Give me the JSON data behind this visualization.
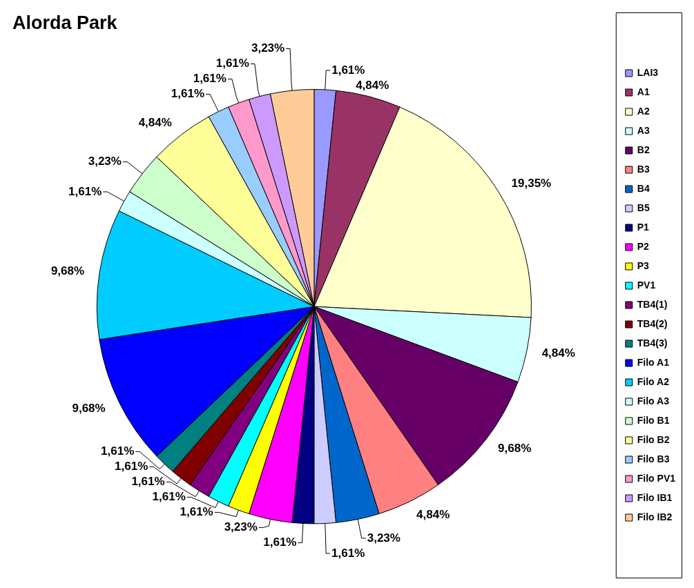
{
  "chart_data": {
    "type": "pie",
    "title": "Alorda Park",
    "categories": [
      "LAI3",
      "A1",
      "A2",
      "A3",
      "B2",
      "B3",
      "B4",
      "B5",
      "P1",
      "P2",
      "P3",
      "PV1",
      "TB4(1)",
      "TB4(2)",
      "TB4(3)",
      "Filo A1",
      "Filo A2",
      "Filo A3",
      "Filo B1",
      "Filo B2",
      "Filo B3",
      "Filo PV1",
      "Filo IB1",
      "Filo IB2"
    ],
    "values": [
      1.61,
      4.84,
      19.35,
      4.84,
      9.68,
      4.84,
      3.23,
      1.61,
      1.61,
      3.23,
      1.61,
      1.61,
      1.61,
      1.61,
      1.61,
      9.68,
      9.68,
      1.61,
      3.23,
      4.84,
      1.61,
      1.61,
      1.61,
      3.23
    ],
    "value_labels": [
      "1,61%",
      "4,84%",
      "19,35%",
      "4,84%",
      "9,68%",
      "4,84%",
      "3,23%",
      "1,61%",
      "1,61%",
      "3,23%",
      "1,61%",
      "1,61%",
      "1,61%",
      "1,61%",
      "1,61%",
      "9,68%",
      "9,68%",
      "1,61%",
      "3,23%",
      "4,84%",
      "1,61%",
      "1,61%",
      "1,61%",
      "3,23%"
    ],
    "colors": [
      "#9999ff",
      "#993366",
      "#ffffcc",
      "#ccffff",
      "#660066",
      "#ff8080",
      "#0066cc",
      "#ccccff",
      "#000080",
      "#ff00ff",
      "#ffff00",
      "#00ffff",
      "#800080",
      "#800000",
      "#008080",
      "#0000ff",
      "#00ccff",
      "#ccffff",
      "#ccffcc",
      "#ffff99",
      "#99ccff",
      "#ff99cc",
      "#cc99ff",
      "#ffcc99"
    ],
    "legend": "right"
  }
}
